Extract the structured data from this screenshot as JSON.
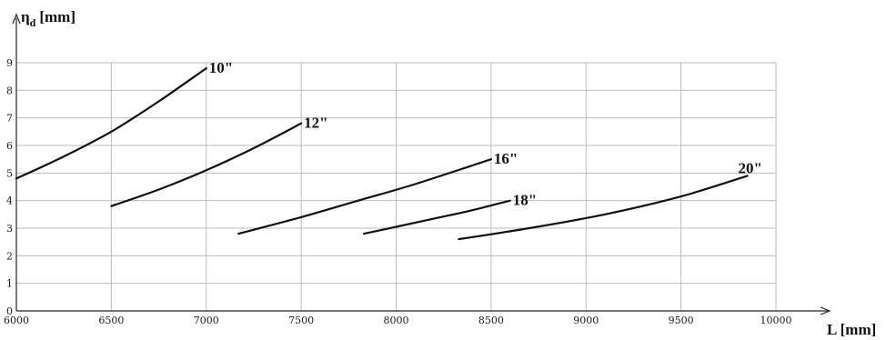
{
  "chart_data": {
    "type": "line",
    "title": "",
    "ylabel": "η",
    "ylabel_sub": "d",
    "ylabel_unit": "[mm]",
    "xlabel": "L [mm]",
    "xlim": [
      6000,
      10000
    ],
    "ylim": [
      0,
      9
    ],
    "grid": true,
    "legend": "none",
    "x_ticks": [
      "6000",
      "6500",
      "7000",
      "7500",
      "8000",
      "8500",
      "9000",
      "9500",
      "10000"
    ],
    "y_ticks": [
      "0",
      "1",
      "2",
      "3",
      "4",
      "5",
      "6",
      "7",
      "8",
      "9"
    ],
    "series": [
      {
        "name": "10\"",
        "x": [
          6000,
          6250,
          6500,
          6750,
          7000
        ],
        "y": [
          4.8,
          5.6,
          6.5,
          7.6,
          8.8
        ]
      },
      {
        "name": "12\"",
        "x": [
          6500,
          6750,
          7000,
          7250,
          7500
        ],
        "y": [
          3.8,
          4.4,
          5.1,
          5.9,
          6.8
        ]
      },
      {
        "name": "16\"",
        "x": [
          7170,
          7500,
          7800,
          8100,
          8500
        ],
        "y": [
          2.8,
          3.4,
          4.0,
          4.6,
          5.5
        ]
      },
      {
        "name": "18\"",
        "x": [
          7830,
          8000,
          8200,
          8400,
          8600
        ],
        "y": [
          2.8,
          3.05,
          3.35,
          3.65,
          4.0
        ]
      },
      {
        "name": "20\"",
        "x": [
          8330,
          8700,
          9100,
          9500,
          9850
        ],
        "y": [
          2.6,
          3.0,
          3.5,
          4.15,
          4.9
        ]
      }
    ]
  }
}
